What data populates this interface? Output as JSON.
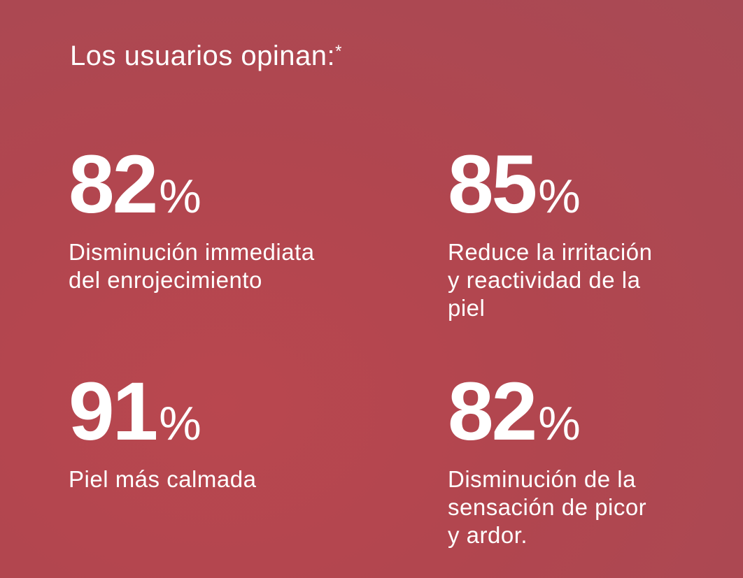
{
  "heading": {
    "text": "Los usuarios opinan:",
    "asterisk": "*"
  },
  "stats": [
    {
      "value": "82",
      "unit": "%",
      "label_lines": [
        "Disminución immediata",
        "del enrojecimiento"
      ]
    },
    {
      "value": "85",
      "unit": "%",
      "label_lines": [
        "Reduce la irritación",
        "y reactividad de la",
        "piel"
      ]
    },
    {
      "value": "91",
      "unit": "%",
      "label_lines": [
        "Piel más calmada"
      ]
    },
    {
      "value": "82",
      "unit": "%",
      "label_lines": [
        "Disminución de la",
        "sensación de picor",
        "y ardor."
      ]
    }
  ],
  "colors": {
    "background": "#b1464f",
    "text": "#ffffff"
  }
}
